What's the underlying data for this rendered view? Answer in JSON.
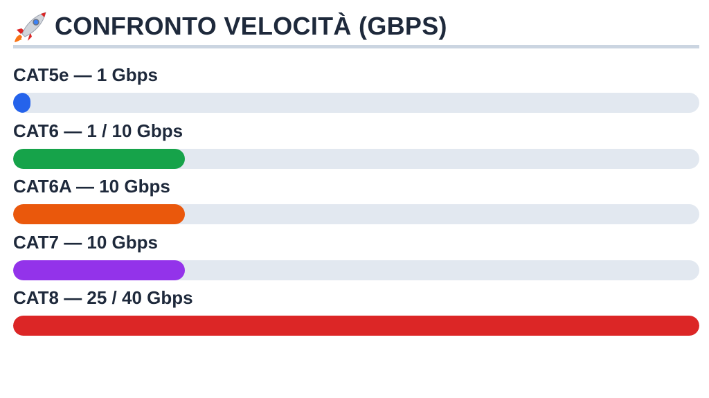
{
  "header": {
    "icon": "rocket-icon",
    "title": "CONFRONTO VELOCITÀ (GBPS)"
  },
  "chart_data": {
    "type": "bar",
    "orientation": "horizontal",
    "title": "CONFRONTO VELOCITÀ (GBPS)",
    "xlim": [
      0,
      40
    ],
    "categories": [
      "CAT5e — 1 Gbps",
      "CAT6 — 1 / 10 Gbps",
      "CAT6A — 10 Gbps",
      "CAT7 — 10 Gbps",
      "CAT8 — 25 / 40 Gbps"
    ],
    "values": [
      1,
      10,
      10,
      10,
      40
    ],
    "colors": [
      "#2563eb",
      "#16a34a",
      "#ea580c",
      "#9333ea",
      "#dc2626"
    ],
    "track_color": "#e2e8f0"
  }
}
